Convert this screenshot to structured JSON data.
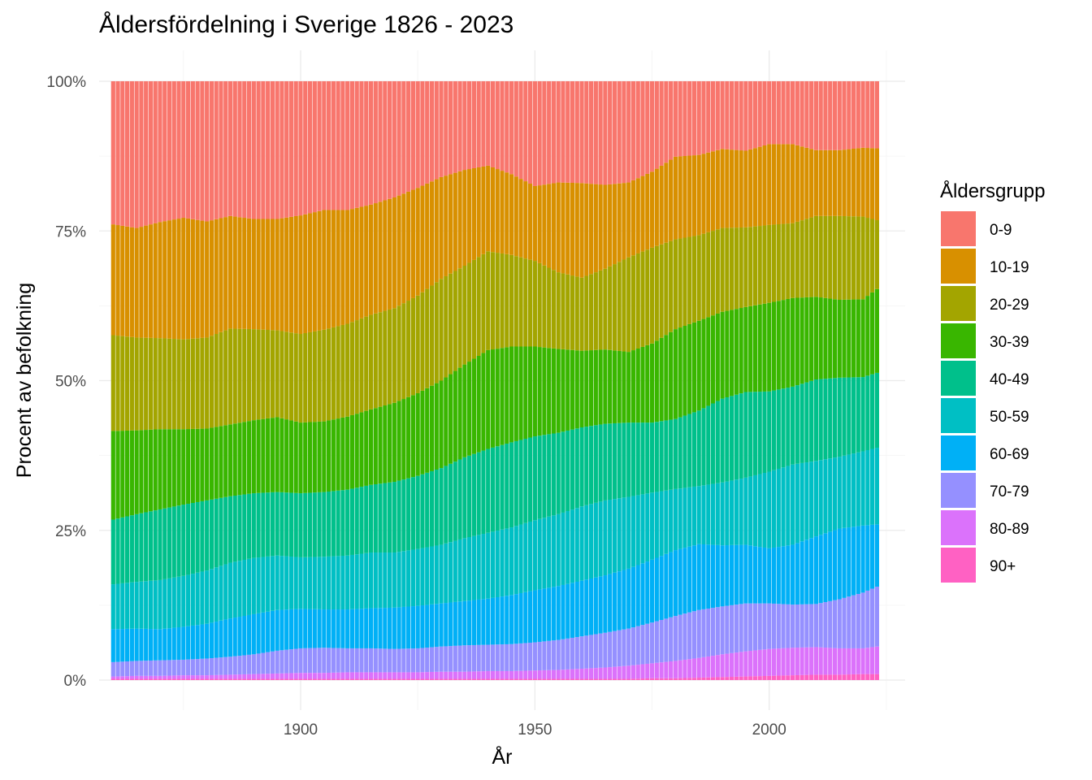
{
  "chart_data": {
    "type": "bar",
    "stacked": true,
    "normalized": true,
    "title": "Åldersfördelning i Sverige 1826 - 2023",
    "xlabel": "År",
    "ylabel": "Procent av befolkning",
    "legend_title": "Åldersgrupp",
    "legend_position": "right",
    "grid": true,
    "xlim": [
      1857,
      2029
    ],
    "ylim": [
      0,
      1
    ],
    "x_ticks": [
      1900,
      1950,
      2000
    ],
    "y_ticks": [
      0,
      0.25,
      0.5,
      0.75,
      1.0
    ],
    "y_tick_labels": [
      "0%",
      "25%",
      "50%",
      "75%",
      "100%"
    ],
    "x": [
      1860,
      1865,
      1870,
      1875,
      1880,
      1885,
      1890,
      1895,
      1900,
      1905,
      1910,
      1915,
      1920,
      1925,
      1930,
      1935,
      1940,
      1945,
      1950,
      1955,
      1960,
      1965,
      1970,
      1975,
      1980,
      1985,
      1990,
      1995,
      2000,
      2005,
      2010,
      2015,
      2020,
      2023
    ],
    "series": [
      {
        "name": "90+",
        "color": "#FF61C3",
        "values": [
          0.002,
          0.002,
          0.002,
          0.002,
          0.002,
          0.002,
          0.002,
          0.002,
          0.002,
          0.002,
          0.002,
          0.002,
          0.002,
          0.002,
          0.002,
          0.002,
          0.002,
          0.002,
          0.002,
          0.002,
          0.002,
          0.002,
          0.002,
          0.003,
          0.003,
          0.004,
          0.005,
          0.006,
          0.007,
          0.008,
          0.009,
          0.009,
          0.01,
          0.01
        ]
      },
      {
        "name": "80-89",
        "color": "#DB72FB",
        "values": [
          0.004,
          0.005,
          0.005,
          0.006,
          0.006,
          0.007,
          0.008,
          0.009,
          0.01,
          0.01,
          0.011,
          0.011,
          0.011,
          0.011,
          0.012,
          0.012,
          0.013,
          0.013,
          0.014,
          0.015,
          0.017,
          0.019,
          0.022,
          0.025,
          0.029,
          0.033,
          0.038,
          0.042,
          0.045,
          0.046,
          0.046,
          0.044,
          0.043,
          0.046
        ]
      },
      {
        "name": "70-79",
        "color": "#9590FF",
        "values": [
          0.024,
          0.025,
          0.026,
          0.026,
          0.028,
          0.03,
          0.033,
          0.038,
          0.041,
          0.042,
          0.04,
          0.04,
          0.039,
          0.04,
          0.042,
          0.044,
          0.044,
          0.045,
          0.047,
          0.05,
          0.054,
          0.058,
          0.062,
          0.068,
          0.075,
          0.08,
          0.08,
          0.08,
          0.076,
          0.072,
          0.072,
          0.082,
          0.093,
          0.1
        ]
      },
      {
        "name": "60-69",
        "color": "#00B0F6",
        "values": [
          0.055,
          0.054,
          0.052,
          0.055,
          0.058,
          0.064,
          0.067,
          0.068,
          0.066,
          0.064,
          0.065,
          0.067,
          0.069,
          0.071,
          0.072,
          0.074,
          0.077,
          0.082,
          0.087,
          0.09,
          0.093,
          0.096,
          0.1,
          0.105,
          0.11,
          0.11,
          0.102,
          0.098,
          0.092,
          0.1,
          0.113,
          0.118,
          0.112,
          0.104
        ]
      },
      {
        "name": "50-59",
        "color": "#00BFC4",
        "values": [
          0.075,
          0.078,
          0.082,
          0.085,
          0.089,
          0.093,
          0.094,
          0.091,
          0.086,
          0.088,
          0.09,
          0.093,
          0.092,
          0.095,
          0.098,
          0.105,
          0.11,
          0.113,
          0.117,
          0.12,
          0.124,
          0.125,
          0.12,
          0.112,
          0.102,
          0.097,
          0.105,
          0.112,
          0.128,
          0.134,
          0.126,
          0.12,
          0.124,
          0.128
        ]
      },
      {
        "name": "40-49",
        "color": "#00C08B",
        "values": [
          0.108,
          0.113,
          0.118,
          0.119,
          0.117,
          0.111,
          0.108,
          0.106,
          0.107,
          0.108,
          0.11,
          0.113,
          0.118,
          0.122,
          0.128,
          0.135,
          0.14,
          0.142,
          0.14,
          0.136,
          0.132,
          0.128,
          0.124,
          0.117,
          0.117,
          0.126,
          0.14,
          0.143,
          0.134,
          0.13,
          0.136,
          0.132,
          0.124,
          0.125
        ]
      },
      {
        "name": "30-39",
        "color": "#39B600",
        "values": [
          0.148,
          0.14,
          0.134,
          0.126,
          0.12,
          0.12,
          0.122,
          0.125,
          0.118,
          0.118,
          0.122,
          0.126,
          0.132,
          0.138,
          0.146,
          0.155,
          0.165,
          0.16,
          0.15,
          0.14,
          0.128,
          0.124,
          0.118,
          0.132,
          0.15,
          0.15,
          0.145,
          0.142,
          0.148,
          0.148,
          0.138,
          0.13,
          0.13,
          0.14
        ]
      },
      {
        "name": "20-29",
        "color": "#A3A500",
        "values": [
          0.16,
          0.155,
          0.152,
          0.15,
          0.152,
          0.16,
          0.152,
          0.145,
          0.148,
          0.153,
          0.155,
          0.158,
          0.158,
          0.163,
          0.17,
          0.165,
          0.165,
          0.153,
          0.143,
          0.128,
          0.122,
          0.135,
          0.158,
          0.16,
          0.15,
          0.143,
          0.14,
          0.133,
          0.13,
          0.125,
          0.135,
          0.14,
          0.138,
          0.115
        ]
      },
      {
        "name": "10-19",
        "color": "#D89000",
        "values": [
          0.185,
          0.183,
          0.194,
          0.203,
          0.194,
          0.188,
          0.184,
          0.186,
          0.198,
          0.2,
          0.19,
          0.184,
          0.185,
          0.18,
          0.17,
          0.16,
          0.143,
          0.135,
          0.125,
          0.15,
          0.158,
          0.14,
          0.125,
          0.127,
          0.138,
          0.134,
          0.132,
          0.128,
          0.135,
          0.132,
          0.11,
          0.11,
          0.115,
          0.12
        ]
      },
      {
        "name": "0-9",
        "color": "#F8766D",
        "values": [
          0.239,
          0.245,
          0.235,
          0.228,
          0.234,
          0.225,
          0.23,
          0.23,
          0.224,
          0.215,
          0.215,
          0.206,
          0.194,
          0.178,
          0.16,
          0.148,
          0.141,
          0.155,
          0.175,
          0.169,
          0.17,
          0.173,
          0.169,
          0.151,
          0.126,
          0.123,
          0.113,
          0.116,
          0.105,
          0.105,
          0.115,
          0.115,
          0.111,
          0.112
        ]
      }
    ]
  }
}
